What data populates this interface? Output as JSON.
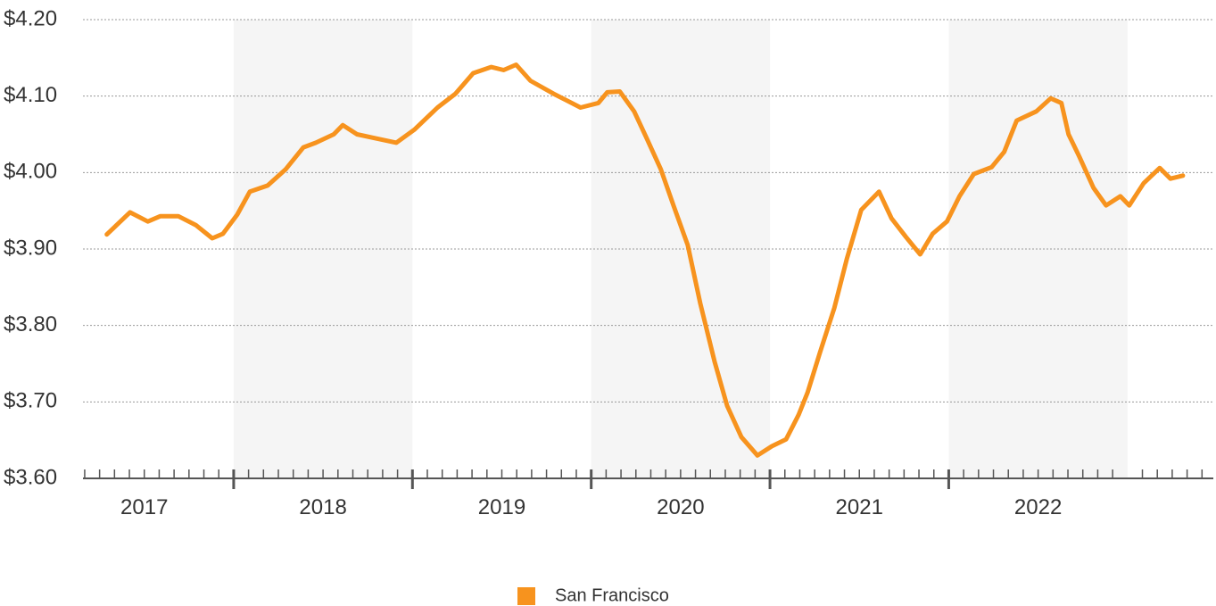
{
  "chart_data": {
    "type": "line",
    "x": [
      2017.29,
      2017.42,
      2017.52,
      2017.59,
      2017.69,
      2017.79,
      2017.88,
      2017.94,
      2018.02,
      2018.09,
      2018.19,
      2018.29,
      2018.39,
      2018.46,
      2018.56,
      2018.61,
      2018.69,
      2018.79,
      2018.91,
      2019.01,
      2019.14,
      2019.24,
      2019.34,
      2019.44,
      2019.51,
      2019.58,
      2019.66,
      2019.79,
      2019.94,
      2020.04,
      2020.09,
      2020.16,
      2020.24,
      2020.31,
      2020.39,
      2020.46,
      2020.54,
      2020.61,
      2020.69,
      2020.76,
      2020.84,
      2020.93,
      2021.01,
      2021.09,
      2021.16,
      2021.21,
      2021.28,
      2021.36,
      2021.43,
      2021.51,
      2021.61,
      2021.68,
      2021.76,
      2021.84,
      2021.91,
      2021.99,
      2022.06,
      2022.14,
      2022.24,
      2022.31,
      2022.38,
      2022.49,
      2022.57,
      2022.63,
      2022.67,
      2022.73,
      2022.81,
      2022.88,
      2022.96,
      2023.01,
      2023.09,
      2023.18,
      2023.24,
      2023.31
    ],
    "series": [
      {
        "name": "San Francisco",
        "color": "#f7931e",
        "values": [
          3.919,
          3.948,
          3.936,
          3.943,
          3.943,
          3.931,
          3.914,
          3.92,
          3.945,
          3.975,
          3.983,
          4.004,
          4.033,
          4.039,
          4.05,
          4.062,
          4.05,
          4.045,
          4.039,
          4.056,
          4.085,
          4.103,
          4.13,
          4.138,
          4.134,
          4.141,
          4.12,
          4.103,
          4.085,
          4.091,
          4.105,
          4.106,
          4.08,
          4.045,
          4.004,
          3.957,
          3.905,
          3.829,
          3.753,
          3.695,
          3.654,
          3.63,
          3.642,
          3.651,
          3.683,
          3.712,
          3.765,
          3.823,
          3.887,
          3.951,
          3.975,
          3.94,
          3.916,
          3.893,
          3.92,
          3.936,
          3.969,
          3.998,
          4.007,
          4.027,
          4.068,
          4.08,
          4.097,
          4.091,
          4.05,
          4.021,
          3.98,
          3.957,
          3.969,
          3.957,
          3.986,
          4.006,
          3.992,
          3.996
        ]
      }
    ],
    "xlim": [
      2017.157,
      2023.48
    ],
    "xticks": [
      {
        "value": 2017,
        "label": "2017"
      },
      {
        "value": 2018,
        "label": "2018"
      },
      {
        "value": 2019,
        "label": "2019"
      },
      {
        "value": 2020,
        "label": "2020"
      },
      {
        "value": 2021,
        "label": "2021"
      },
      {
        "value": 2022,
        "label": "2022"
      }
    ],
    "ylim": [
      3.6,
      4.2
    ],
    "yticks": [
      {
        "value": 3.6,
        "label": "$3.60"
      },
      {
        "value": 3.7,
        "label": "$3.70"
      },
      {
        "value": 3.8,
        "label": "$3.80"
      },
      {
        "value": 3.9,
        "label": "$3.90"
      },
      {
        "value": 4.0,
        "label": "$4.00"
      },
      {
        "value": 4.1,
        "label": "$4.10"
      },
      {
        "value": 4.2,
        "label": "$4.20"
      }
    ],
    "grid": true,
    "legend": "bottom"
  }
}
